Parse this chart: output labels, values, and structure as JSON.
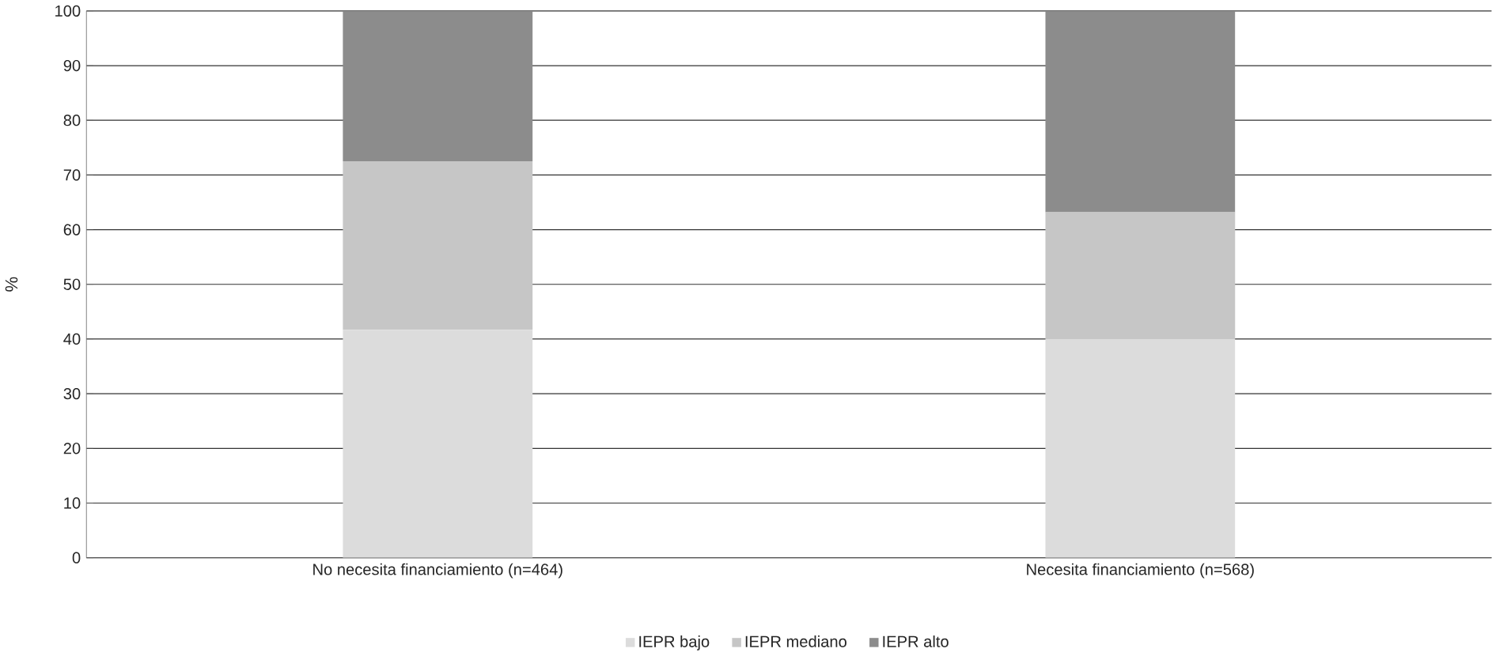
{
  "chart_data": {
    "type": "bar",
    "stacked": true,
    "ylabel": "%",
    "categories": [
      "No necesita financiamiento (n=464)",
      "Necesita financiamiento (n=568)"
    ],
    "series": [
      {
        "name": "IEPR bajo",
        "color": "#dcdcdc",
        "values": [
          41.7,
          40.0
        ]
      },
      {
        "name": "IEPR mediano",
        "color": "#c6c6c6",
        "values": [
          30.8,
          23.2
        ]
      },
      {
        "name": "IEPR alto",
        "color": "#8c8c8c",
        "values": [
          27.5,
          36.8
        ]
      }
    ],
    "ylim": [
      0,
      100
    ],
    "yticks": [
      0,
      10,
      20,
      30,
      40,
      50,
      60,
      70,
      80,
      90,
      100
    ],
    "grid": "y",
    "legend": "bottom"
  }
}
